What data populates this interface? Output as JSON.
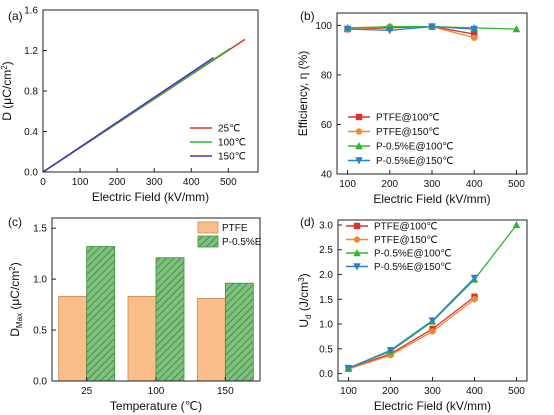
{
  "figure": {
    "panels": [
      "(a)",
      "(b)",
      "(c)",
      "(d)"
    ]
  },
  "chart_data": [
    {
      "panel": "(a)",
      "type": "line",
      "xlabel": "Electric Field (kV/mm)",
      "ylabel": "D (μC/cm²)",
      "ylabel_main": "D (",
      "ylabel_unit": "μC/cm",
      "ylabel_sup": "2",
      "ylabel_end": ")",
      "xlim": [
        0,
        580
      ],
      "ylim": [
        0,
        1.6
      ],
      "xticks": [
        0,
        100,
        200,
        300,
        400,
        500
      ],
      "yticks": [
        0.0,
        0.4,
        0.8,
        1.2,
        1.6
      ],
      "legend_position": "bottom-right",
      "series": [
        {
          "name": "25℃",
          "color": "#e0302a",
          "x": [
            0,
            545
          ],
          "y": [
            0,
            1.31
          ]
        },
        {
          "name": "100℃",
          "color": "#2db82d",
          "x": [
            0,
            505
          ],
          "y": [
            0,
            1.22
          ]
        },
        {
          "name": "150℃",
          "color": "#4636c8",
          "x": [
            0,
            460
          ],
          "y": [
            0,
            1.13
          ]
        }
      ]
    },
    {
      "panel": "(b)",
      "type": "line",
      "xlabel": "Electric Field (kV/mm)",
      "ylabel": "Efficiency, η (%)",
      "xlim": [
        75,
        525
      ],
      "ylim": [
        40,
        105
      ],
      "xticks": [
        100,
        200,
        300,
        400,
        500
      ],
      "yticks": [
        40,
        60,
        80,
        100
      ],
      "legend_position": "bottom-left",
      "series": [
        {
          "name": "PTFE@100℃",
          "color": "#e0302a",
          "marker": "square",
          "x": [
            100,
            200,
            300,
            400
          ],
          "y": [
            98.5,
            99,
            99.5,
            96.5
          ]
        },
        {
          "name": "PTFE@150℃",
          "color": "#f08a30",
          "marker": "circle",
          "x": [
            100,
            200,
            300,
            400
          ],
          "y": [
            98.5,
            99.5,
            99.5,
            95.0
          ]
        },
        {
          "name": "P-0.5%E@100℃",
          "color": "#2db82d",
          "marker": "triangle",
          "x": [
            100,
            200,
            300,
            400,
            500
          ],
          "y": [
            99,
            99.5,
            99.5,
            99,
            98.5
          ]
        },
        {
          "name": "P-0.5%E@150℃",
          "color": "#2a7fd0",
          "marker": "triangle-down",
          "x": [
            100,
            200,
            300,
            400
          ],
          "y": [
            98.5,
            98,
            99.5,
            98.5
          ]
        }
      ]
    },
    {
      "panel": "(c)",
      "type": "bar",
      "xlabel": "Temperature (℃)",
      "ylabel_main": "D",
      "ylabel_sub": "Max",
      "ylabel_unit": " (μC/cm",
      "ylabel_sup": "2",
      "ylabel_end": ")",
      "categories": [
        "25",
        "100",
        "150"
      ],
      "ylim": [
        0,
        1.6
      ],
      "yticks": [
        0.0,
        0.5,
        1.0,
        1.5
      ],
      "legend_position": "top-right",
      "series": [
        {
          "name": "PTFE",
          "color": "#f9be8a",
          "values": [
            0.83,
            0.83,
            0.81
          ]
        },
        {
          "name": "P-0.5%E",
          "color": "#7fc07f",
          "hatch": true,
          "values": [
            1.32,
            1.21,
            0.96
          ]
        }
      ]
    },
    {
      "panel": "(d)",
      "type": "line",
      "xlabel": "Electric Field (kV/mm)",
      "ylabel_main": "U",
      "ylabel_sub": "d",
      "ylabel_unit": " (J/cm",
      "ylabel_sup": "3",
      "ylabel_end": ")",
      "xlim": [
        75,
        525
      ],
      "ylim": [
        -0.15,
        3.1
      ],
      "xticks": [
        100,
        200,
        300,
        400,
        500
      ],
      "yticks": [
        0.0,
        0.5,
        1.0,
        1.5,
        2.0,
        2.5,
        3.0
      ],
      "legend_position": "top-left",
      "series": [
        {
          "name": "PTFE@100℃",
          "color": "#e0302a",
          "marker": "square",
          "x": [
            100,
            200,
            300,
            400
          ],
          "y": [
            0.1,
            0.4,
            0.9,
            1.55
          ]
        },
        {
          "name": "PTFE@150℃",
          "color": "#f08a30",
          "marker": "circle",
          "x": [
            100,
            200,
            300,
            400
          ],
          "y": [
            0.09,
            0.37,
            0.85,
            1.5
          ]
        },
        {
          "name": "P-0.5%E@100℃",
          "color": "#2db82d",
          "marker": "triangle",
          "x": [
            100,
            200,
            300,
            400,
            500
          ],
          "y": [
            0.11,
            0.45,
            1.05,
            1.9,
            3.0
          ]
        },
        {
          "name": "P-0.5%E@150℃",
          "color": "#2a7fd0",
          "marker": "triangle-down",
          "x": [
            100,
            200,
            300,
            400
          ],
          "y": [
            0.11,
            0.47,
            1.07,
            1.93
          ]
        }
      ]
    }
  ]
}
